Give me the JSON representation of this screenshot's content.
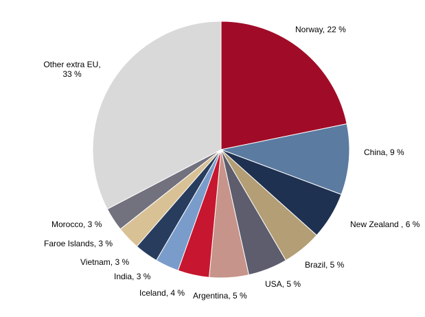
{
  "chart_data": {
    "type": "pie",
    "title": "",
    "start_angle_deg": 0,
    "direction": "clockwise",
    "slices": [
      {
        "label": "Norway, 22 %",
        "lines": [
          "Norway, 22 %"
        ],
        "value": 22,
        "color": "#A00C27"
      },
      {
        "label": "China, 9 %",
        "lines": [
          "China, 9 %"
        ],
        "value": 9,
        "color": "#5B7BA0"
      },
      {
        "label": "New Zealand , 6 %",
        "lines": [
          "New Zealand , 6 %"
        ],
        "value": 6,
        "color": "#1F3150"
      },
      {
        "label": "Brazil, 5 %",
        "lines": [
          "Brazil, 5 %"
        ],
        "value": 5,
        "color": "#B39E76"
      },
      {
        "label": "USA, 5 %",
        "lines": [
          "USA, 5 %"
        ],
        "value": 5,
        "color": "#5D5D6D"
      },
      {
        "label": "Argentina, 5 %",
        "lines": [
          "Argentina, 5 %"
        ],
        "value": 5,
        "color": "#C6948A"
      },
      {
        "label": "Iceland, 4 %",
        "lines": [
          "Iceland, 4 %"
        ],
        "value": 4,
        "color": "#C7162F"
      },
      {
        "label": "India, 3 %",
        "lines": [
          "India, 3 %"
        ],
        "value": 3,
        "color": "#7A9CCB"
      },
      {
        "label": "Vietnam, 3 %",
        "lines": [
          "Vietnam, 3 %"
        ],
        "value": 3,
        "color": "#283D5E"
      },
      {
        "label": "Faroe Islands, 3 %",
        "lines": [
          "Faroe Islands, 3 %"
        ],
        "value": 3,
        "color": "#D9C196"
      },
      {
        "label": "Morocco, 3 %",
        "lines": [
          "Morocco, 3 %"
        ],
        "value": 3,
        "color": "#72717E"
      },
      {
        "label": "Other extra EU, 33 %",
        "lines": [
          "Other extra EU,",
          "33 %"
        ],
        "value": 33,
        "color": "#D9D9D9"
      }
    ]
  }
}
